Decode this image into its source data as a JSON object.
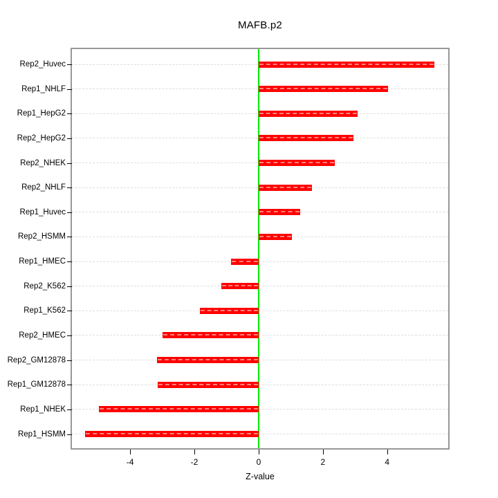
{
  "figure": {
    "title": "MAFB.p2",
    "xlabel": "Z-value"
  },
  "chart_data": {
    "type": "bar",
    "orientation": "horizontal",
    "title": "MAFB.p2",
    "xlabel": "Z-value",
    "ylabel": "",
    "categories": [
      "Rep2_Huvec",
      "Rep1_NHLF",
      "Rep1_HepG2",
      "Rep2_HepG2",
      "Rep2_NHEK",
      "Rep2_NHLF",
      "Rep1_Huvec",
      "Rep2_HSMM",
      "Rep1_HMEC",
      "Rep2_K562",
      "Rep1_K562",
      "Rep2_HMEC",
      "Rep2_GM12878",
      "Rep1_GM12878",
      "Rep1_NHEK",
      "Rep1_HSMM"
    ],
    "values": [
      5.48,
      4.02,
      3.07,
      2.96,
      2.38,
      1.65,
      1.3,
      1.04,
      -0.85,
      -1.17,
      -1.82,
      -2.98,
      -3.17,
      -3.14,
      -4.97,
      -5.4
    ],
    "xlim": [
      -5.81,
      5.9
    ],
    "xticks": [
      -4,
      -2,
      0,
      2,
      4
    ],
    "grid": "dashed-horizontal",
    "legend_position": "none",
    "colors": {
      "bar": "#ff0000",
      "zero_line": "#00ee00",
      "grid_line": "#dcdcdc",
      "box_border": "#979797",
      "text": "#000000",
      "background": "#ffffff"
    }
  }
}
